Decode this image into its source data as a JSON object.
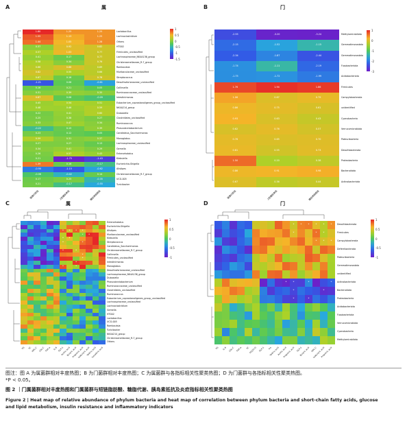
{
  "panels": {
    "A": {
      "label": "A",
      "title": "属",
      "rows": [
        "Lactobacillus",
        "Lachnoclostridium",
        "Others",
        "HT002",
        "Firmicutes_unclassified",
        "Lachnospiraceae_NK4A136_group",
        "Christensenellaceae_R-7_group",
        "Romboutsia",
        "Muribaculaceae_unclassified",
        "Streptococcus",
        "Desulfovibrionaceae_unclassified",
        "Collinsella",
        "Ruminococcaceae_unclassified",
        "Intestinimonas",
        "Eubacterium_coprostanoligenes_group_unclassified",
        "NK4A214_group",
        "Dubosiella",
        "Clostridiales_unclassified",
        "Ruminococcus",
        "Phascolarctobacterium",
        "Candidatus_Saccharimonas",
        "Monoglobus",
        "Lachnospiraceae_unclassified",
        "Gemella",
        "Enterorhabdus",
        "Klebsiella",
        "Escherichia-Shigella",
        "Alistipes",
        "Christensenellaceae_R-7_group",
        "UCG-005",
        "Turicibacter"
      ],
      "cols": [
        "健康对照组",
        "2型糖尿病组",
        "糖尿病前期组"
      ],
      "values": [
        [
          1.8,
          1.25,
          1.25
        ],
        [
          1.55,
          1.13,
          1.25
        ],
        [
          1.44,
          1.05,
          1.28
        ],
        [
          0.37,
          0.92,
          0.82
        ],
        [
          0.57,
          1.03,
          0.77
        ],
        [
          0.41,
          0.17,
          0.77
        ],
        [
          0.58,
          0.34,
          0.76
        ],
        [
          0.66,
          0.86,
          0.69
        ],
        [
          0.82,
          0.55,
          0.66
        ],
        [
          0.67,
          0.16,
          0.78
        ],
        [
          -1.21,
          0.08,
          -0.61
        ],
        [
          0.16,
          0.21,
          0.05
        ],
        [
          0.31,
          0.39,
          0.35
        ],
        [
          0.87,
          0.08,
          -0.09
        ],
        [
          0.45,
          0.54,
          0.51
        ],
        [
          0.48,
          0.46,
          0.59
        ],
        [
          0.22,
          0.41,
          0.6
        ],
        [
          0.25,
          0.38,
          0.27
        ],
        [
          0.33,
          0.47,
          0.34
        ],
        [
          -0.22,
          0.15,
          0.39
        ],
        [
          0.23,
          0.12,
          0.05
        ],
        [
          0.59,
          0.31,
          0.37
        ],
        [
          0.27,
          0.27,
          0.13
        ],
        [
          0.34,
          0.41,
          0.29
        ],
        [
          0.26,
          0.57,
          0.43
        ],
        [
          0.21,
          -1.75,
          -1.43
        ],
        [
          1.39,
          0.16,
          -0.17
        ],
        [
          -0.9,
          -1.15,
          -0.62
        ],
        [
          -0.06,
          -0.42,
          0.14
        ],
        [
          0.17,
          0.25,
          -0.35
        ],
        [
          0.21,
          -0.17,
          -0.55
        ]
      ],
      "legend": [
        "1",
        "0.5",
        "0",
        "-0.5",
        "-1",
        "-1.5"
      ]
    },
    "B": {
      "label": "B",
      "title": "门",
      "rows": [
        "Methylomirabilota",
        "Gemmatimonadota",
        "Gemmatimonadota",
        "Fusobacteriota",
        "Acidobacteriota",
        "Firmicutes",
        "Campylobacterota",
        "unidentified",
        "Cyanobacteria",
        "Verrucomicrobiota",
        "Patescibacteria",
        "Desulfobacterota",
        "Proteobacteria",
        "Bacteroidota",
        "Actinobacteriota"
      ],
      "cols": [
        "健康对照组",
        "2型糖尿病组",
        "糖尿病前期组"
      ],
      "values": [
        [
          -2.55,
          -3.2,
          -3.24
        ],
        [
          -2.15,
          -1.52,
          -1.15
        ],
        [
          -2.34,
          -1.87,
          -2.44
        ],
        [
          -1.74,
          -1.11,
          -2.19
        ],
        [
          -1.75,
          -1.72,
          -1.99
        ],
        [
          1.76,
          1.94,
          1.86
        ],
        [
          1.06,
          0.67,
          0.79
        ],
        [
          0.86,
          0.75,
          0.61
        ],
        [
          0.93,
          0.63,
          0.43
        ],
        [
          0.62,
          0.76,
          0.57
        ],
        [
          0.76,
          0.65,
          0.7
        ],
        [
          0.81,
          0.55,
          0.73
        ],
        [
          1.5,
          0.2,
          0.38
        ],
        [
          0.86,
          0.91,
          0.98
        ],
        [
          0.67,
          0.36,
          0.44
        ]
      ],
      "legend": [
        "1",
        "0",
        "-1",
        "-2",
        "-3"
      ]
    },
    "C": {
      "label": "C",
      "title": "属",
      "rows": [
        "Enterorhabdus",
        "Escherichia-Shigella",
        "Alistipes",
        "Muribaculaceae_unclassified",
        "Klebsiella",
        "Streptococcus",
        "Candidatus_Saccharimonas",
        "Christensenellaceae_R-7_group",
        "Collinsella",
        "Firmicutes_unclassified",
        "Intestinimonas",
        "Monoglobus",
        "Desulfovibrionaceae_unclassified",
        "Lachnospiraceae_NK4A136_group",
        "Dubosiella",
        "Phascolarctobacterium",
        "Ruminococcaceae_unclassified",
        "Clostridiales_unclassified",
        "Ruminococcus",
        "Eubacterium_coprostanoligenes_group_unclassified",
        "Lachnospiraceae_unclassified",
        "Lachnoclostridium",
        "Gemella",
        "HT002",
        "Lactobacillus",
        "UCG-005",
        "Romboutsia",
        "Turicibacter",
        "NK4A214_group",
        "Christensenellaceae_R-7_group",
        "Others"
      ],
      "cols": [
        "TG",
        "TC",
        "HDL-C",
        "LDL-C",
        "TNF-α",
        "IL-6",
        "GLP-1",
        "Acetic acid",
        "Butyric acid",
        "Propionic acid",
        "Isobutyric acid",
        "Valeric acid",
        "Isovaleric acid"
      ],
      "legend": [
        "1",
        "0.5",
        "0",
        "-0.5",
        "-1"
      ]
    },
    "D": {
      "label": "D",
      "title": "门",
      "rows": [
        "Desulfobacterota",
        "Firmicutes",
        "Campylobacterota",
        "Deferribacterota",
        "Patescibacteria",
        "Gemmatimonadota",
        "unidentified",
        "Actinobacteriota",
        "Bacteroidota",
        "Proteobacteria",
        "Acidobacteriota",
        "Fusobacteriota",
        "Verrucomicrobiota",
        "Cyanobacteria",
        "Methylomirabilota"
      ],
      "cols": [
        "TG",
        "IL-6",
        "LDL-C",
        "TNF-α",
        "TC",
        "FG/2h-G",
        "GLP-1",
        "Ins",
        "Valeric acid",
        "Acetic acid",
        "Propionic acid",
        "GLP-1",
        "Butyric acid",
        "HDL-C",
        "Isobutyric acid",
        "Propionic acid"
      ],
      "legend": [
        "1",
        "0.5",
        "0",
        "-0.5",
        "-1"
      ]
    }
  },
  "caption": {
    "zh_note": "图注：图 A 为属菌群相对丰度热图；B 为门菌群相对丰度热图；C 为属菌群与各指标相关性聚类热图；D 为门菌群与各指标相关性聚类热图。",
    "zh_p": "*P < 0.05。",
    "zh_title": "图 2 ｜门属菌群相对丰度热图和门属菌群与短链脂肪酸、糖脂代谢、胰岛素抵抗及炎症指标相关性聚类热图",
    "en_line1": "Figure 2 | Heat map of relative abundance of phylum bacteria and heat map of correlation between phylum bacteria and short-chain fatty acids, glucose",
    "en_line2": "and lipid metabolism, insulin resistance and inflammatory indicators"
  }
}
